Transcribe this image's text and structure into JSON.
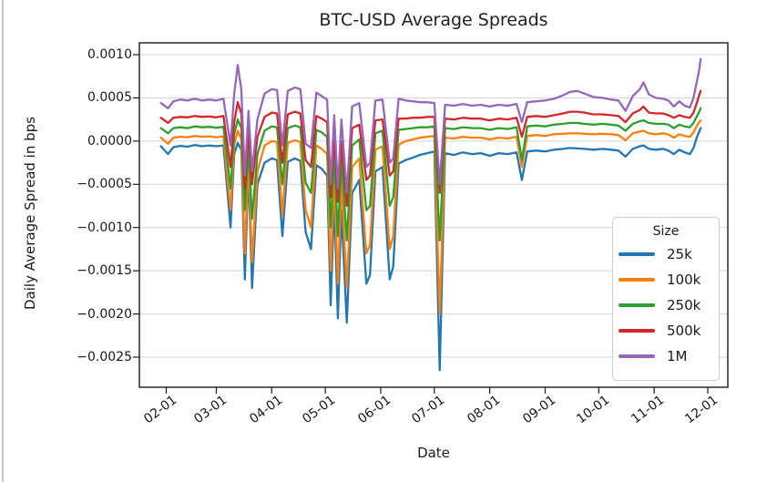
{
  "figure": {
    "title": "BTC-USD Average Spreads",
    "xlabel": "Date",
    "ylabel": "Daily Average Spread in bps"
  },
  "chart_data": {
    "type": "line",
    "title": "BTC-USD Average Spreads",
    "xlabel": "Date",
    "ylabel": "Daily Average Spread in bps",
    "grid": "horizontal",
    "legend_title": "Size",
    "legend_position": "lower right",
    "ylim": [
      -0.00285,
      0.00114
    ],
    "y_tick_values": [
      0.001,
      0.0005,
      0.0,
      -0.0005,
      -0.001,
      -0.0015,
      -0.002,
      -0.0025
    ],
    "y_tick_labels": [
      "0.0010",
      "0.0005",
      "0.0000",
      "−0.0005",
      "−0.0010",
      "−0.0015",
      "−0.0020",
      "−0.0025"
    ],
    "x_tick_labels": [
      "02-01",
      "03-01",
      "04-01",
      "05-01",
      "06-01",
      "07-01",
      "08-01",
      "09-01",
      "10-01",
      "11-01",
      "12-01"
    ],
    "x": [
      "01-29",
      "02-02",
      "02-05",
      "02-09",
      "02-13",
      "02-17",
      "02-21",
      "02-25",
      "03-01",
      "03-05",
      "03-09",
      "03-11",
      "03-13",
      "03-15",
      "03-17",
      "03-19",
      "03-21",
      "03-24",
      "03-28",
      "04-01",
      "04-04",
      "04-07",
      "04-10",
      "04-14",
      "04-17",
      "04-20",
      "04-23",
      "04-26",
      "04-29",
      "05-02",
      "05-04",
      "05-06",
      "05-08",
      "05-10",
      "05-13",
      "05-16",
      "05-20",
      "05-24",
      "05-26",
      "05-29",
      "06-02",
      "06-06",
      "06-08",
      "06-11",
      "06-15",
      "06-19",
      "06-23",
      "06-27",
      "07-01",
      "07-04",
      "07-07",
      "07-12",
      "07-17",
      "07-22",
      "07-27",
      "08-01",
      "08-06",
      "08-11",
      "08-16",
      "08-19",
      "08-22",
      "08-27",
      "09-01",
      "09-06",
      "09-11",
      "09-15",
      "09-19",
      "09-23",
      "09-28",
      "10-03",
      "10-08",
      "10-12",
      "10-16",
      "10-20",
      "10-24",
      "10-26",
      "10-29",
      "11-02",
      "11-06",
      "11-09",
      "11-12",
      "11-15",
      "11-18",
      "11-21",
      "11-23",
      "11-25",
      "11-26",
      "11-27"
    ],
    "series": [
      {
        "name": "25k",
        "color": "#1f77b4",
        "values": [
          -6e-05,
          -0.00015,
          -7e-05,
          -5.5e-05,
          -6.5e-05,
          -4.5e-05,
          -6e-05,
          -5e-05,
          -6e-05,
          -5e-05,
          -0.001,
          -0.00015,
          -2e-05,
          -0.0001,
          -0.0016,
          -0.0003,
          -0.0017,
          -0.0005,
          -0.00025,
          -0.0002,
          -0.00022,
          -0.0011,
          -0.00024,
          -0.0002,
          -0.00023,
          -0.00105,
          -0.00125,
          -0.00028,
          -0.00032,
          -0.0004,
          -0.0019,
          -0.0007,
          -0.00205,
          -0.0008,
          -0.0021,
          -0.0006,
          -0.00045,
          -0.00165,
          -0.00155,
          -0.00035,
          -0.0003,
          -0.0016,
          -0.00145,
          -0.00026,
          -0.00022,
          -0.00019,
          -0.00016,
          -0.00014,
          -0.00012,
          -0.00265,
          -0.00014,
          -0.00016,
          -0.00013,
          -0.00015,
          -0.00014,
          -0.00017,
          -0.00014,
          -0.00015,
          -0.00013,
          -0.00045,
          -0.00012,
          -0.00011,
          -0.00012,
          -0.0001,
          -9e-05,
          -8e-05,
          -8.5e-05,
          -9e-05,
          -0.0001,
          -9e-05,
          -0.0001,
          -0.00011,
          -0.00018,
          -9e-05,
          -6e-05,
          -5e-05,
          -9e-05,
          -0.0001,
          -9e-05,
          -0.00011,
          -0.00015,
          -0.0001,
          -0.00013,
          -0.00015,
          -8e-05,
          5e-05,
          0.0001,
          0.00015
        ]
      },
      {
        "name": "100k",
        "color": "#ff7f0e",
        "values": [
          4e-05,
          -3e-05,
          4e-05,
          5e-05,
          4.5e-05,
          6e-05,
          5e-05,
          5.5e-05,
          4.5e-05,
          5.5e-05,
          -0.0008,
          -4e-05,
          0.00012,
          2e-05,
          -0.0013,
          -0.00018,
          -0.0014,
          -0.00035,
          -5e-05,
          0,
          -1e-05,
          -0.00085,
          -2e-05,
          1e-05,
          -1e-05,
          -0.0008,
          -0.001,
          -5e-05,
          -9e-05,
          -0.00015,
          -0.0015,
          -0.0004,
          -0.00165,
          -0.00045,
          -0.0017,
          -0.0003,
          -0.0002,
          -0.0013,
          -0.0012,
          -0.0001,
          -6e-05,
          -0.00125,
          -0.0011,
          -4e-05,
          0,
          2e-05,
          4e-05,
          5e-05,
          6e-05,
          -0.002,
          4e-05,
          3e-05,
          5e-05,
          4e-05,
          4e-05,
          2e-05,
          4e-05,
          3e-05,
          5e-05,
          -0.0003,
          6e-05,
          7e-05,
          6e-05,
          8e-05,
          8.5e-05,
          9e-05,
          9e-05,
          8.5e-05,
          8e-05,
          8.5e-05,
          8e-05,
          7e-05,
          1e-05,
          9e-05,
          0.00011,
          0.00012,
          9e-05,
          8e-05,
          9e-05,
          7.5e-05,
          4e-05,
          8e-05,
          6e-05,
          5e-05,
          0.0001,
          0.00018,
          0.00021,
          0.00024
        ]
      },
      {
        "name": "250k",
        "color": "#2ca02c",
        "values": [
          0.00015,
          9e-05,
          0.00015,
          0.00016,
          0.00015,
          0.00017,
          0.00016,
          0.000165,
          0.000155,
          0.000165,
          -0.00055,
          8e-05,
          0.00025,
          0.00015,
          -0.0008,
          -5e-05,
          -0.0009,
          -0.00015,
          0.00012,
          0.00017,
          0.00016,
          -0.0005,
          0.00015,
          0.00018,
          0.00016,
          -0.00048,
          -0.0006,
          0.00013,
          0.0001,
          5e-05,
          -0.001,
          -0.00015,
          -0.0011,
          -0.0002,
          -0.00115,
          -5e-05,
          2e-05,
          -0.0008,
          -0.00075,
          9e-05,
          0.00012,
          -0.00075,
          -0.00065,
          0.00013,
          0.00014,
          0.00015,
          0.00016,
          0.00016,
          0.00017,
          -0.00115,
          0.00015,
          0.00014,
          0.00016,
          0.00015,
          0.00015,
          0.00013,
          0.00015,
          0.00014,
          0.00016,
          -0.00022,
          0.00017,
          0.00018,
          0.00017,
          0.00019,
          0.0002,
          0.00021,
          0.00021,
          0.0002,
          0.00019,
          0.0002,
          0.00019,
          0.00018,
          0.00012,
          0.0002,
          0.00023,
          0.00024,
          0.00021,
          0.0002,
          0.0002,
          0.00019,
          0.00015,
          0.00019,
          0.00017,
          0.00016,
          0.00021,
          0.00029,
          0.00033,
          0.00038
        ]
      },
      {
        "name": "500k",
        "color": "#d62728",
        "values": [
          0.00027,
          0.00021,
          0.00027,
          0.00028,
          0.000275,
          0.00029,
          0.00028,
          0.000285,
          0.000275,
          0.00029,
          -0.0003,
          0.00022,
          0.00045,
          0.00032,
          -0.00055,
          0.00012,
          -0.0005,
          5e-05,
          0.00028,
          0.00033,
          0.00032,
          -0.00025,
          0.00031,
          0.00034,
          0.00032,
          -0.00022,
          -0.0003,
          0.00029,
          0.00026,
          0.00022,
          -0.00065,
          8e-05,
          -0.0007,
          0,
          -0.00075,
          0.00015,
          0.00019,
          -0.00045,
          -0.0004,
          0.00024,
          0.00025,
          -0.0004,
          -0.00035,
          0.00026,
          0.00026,
          0.00027,
          0.00027,
          0.00028,
          0.00028,
          -0.0006,
          0.00026,
          0.00025,
          0.00027,
          0.00026,
          0.00026,
          0.00024,
          0.00026,
          0.00025,
          0.00027,
          5e-05,
          0.00028,
          0.00029,
          0.00028,
          0.0003,
          0.00032,
          0.00034,
          0.00034,
          0.00033,
          0.00031,
          0.00031,
          0.0003,
          0.00029,
          0.00022,
          0.00032,
          0.00036,
          0.0004,
          0.00033,
          0.00032,
          0.00032,
          0.0003,
          0.00027,
          0.0003,
          0.00028,
          0.00027,
          0.00033,
          0.00045,
          0.00052,
          0.00058
        ]
      },
      {
        "name": "1M",
        "color": "#9467bd",
        "values": [
          0.00044,
          0.00038,
          0.00046,
          0.00048,
          0.00047,
          0.00049,
          0.00047,
          0.00048,
          0.00047,
          0.00049,
          -5e-05,
          0.00055,
          0.00088,
          0.0006,
          -0.0004,
          0.00035,
          -0.00035,
          0.00025,
          0.00055,
          0.0006,
          0.00059,
          -5e-05,
          0.00058,
          0.00062,
          0.0006,
          -3e-05,
          -8e-05,
          0.00056,
          0.00052,
          0.00048,
          -0.0005,
          0.0003,
          -0.00055,
          0.00025,
          -0.0006,
          0.0004,
          0.00044,
          -0.0003,
          -0.00025,
          0.00047,
          0.00048,
          -0.00025,
          -0.0002,
          0.00049,
          0.00047,
          0.00046,
          0.00045,
          0.00045,
          0.00044,
          -0.0005,
          0.00042,
          0.00041,
          0.00043,
          0.00041,
          0.00042,
          0.0004,
          0.00042,
          0.00041,
          0.00043,
          0.00022,
          0.00045,
          0.00046,
          0.00047,
          0.00049,
          0.00053,
          0.00057,
          0.00058,
          0.00055,
          0.00051,
          0.0005,
          0.00048,
          0.00047,
          0.00035,
          0.00052,
          0.0006,
          0.00068,
          0.00054,
          0.0005,
          0.00049,
          0.00047,
          0.0004,
          0.00046,
          0.00041,
          0.00039,
          0.0005,
          0.0007,
          0.0008,
          0.00095
        ]
      }
    ]
  }
}
